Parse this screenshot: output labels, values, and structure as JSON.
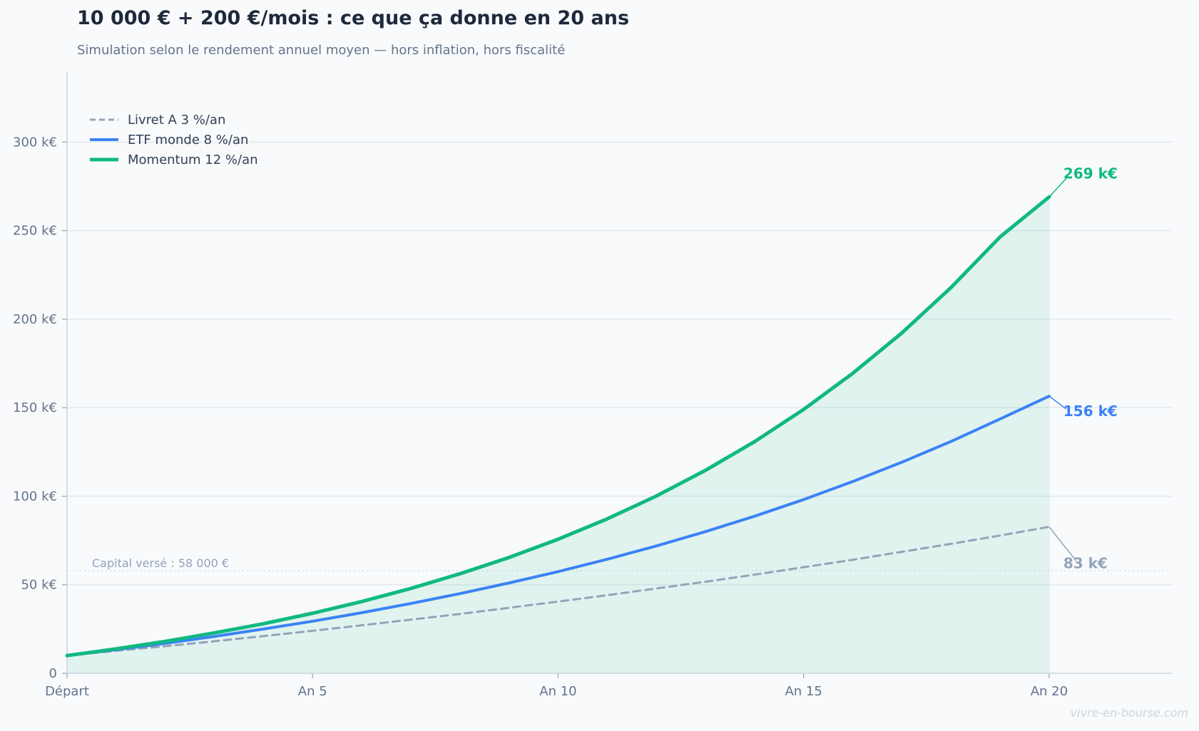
{
  "header": {
    "title": "10 000 € + 200 €/mois : ce que ça donne en 20 ans",
    "subtitle": "Simulation selon le rendement annuel moyen — hors inflation, hors fiscalité"
  },
  "footer": {
    "watermark": "vivre-en-bourse.com"
  },
  "chart_data": {
    "type": "line",
    "xlabel": "",
    "ylabel": "",
    "x": [
      0,
      1,
      2,
      3,
      4,
      5,
      6,
      7,
      8,
      9,
      10,
      11,
      12,
      13,
      14,
      15,
      16,
      17,
      18,
      19,
      20
    ],
    "xlim": [
      0,
      22.5
    ],
    "ylim": [
      0,
      340
    ],
    "x_ticks": [
      {
        "value": 0,
        "label": "Départ"
      },
      {
        "value": 5,
        "label": "An 5"
      },
      {
        "value": 10,
        "label": "An 10"
      },
      {
        "value": 15,
        "label": "An 15"
      },
      {
        "value": 20,
        "label": "An 20"
      }
    ],
    "y_ticks": [
      {
        "value": 0,
        "label": "0"
      },
      {
        "value": 50,
        "label": "50 k€"
      },
      {
        "value": 100,
        "label": "100 k€"
      },
      {
        "value": 150,
        "label": "150 k€"
      },
      {
        "value": 200,
        "label": "200 k€"
      },
      {
        "value": 250,
        "label": "250 k€"
      },
      {
        "value": 300,
        "label": "300 k€"
      }
    ],
    "grid": "horizontal",
    "legend_position": "top-left",
    "series": [
      {
        "name": "Livret A  3 %/an",
        "style": "dashed",
        "color": "#94a3b8",
        "values": [
          10.0,
          12.7,
          15.3,
          18.1,
          21.0,
          24.0,
          27.1,
          30.3,
          33.5,
          37.0,
          40.5,
          44.1,
          47.9,
          51.7,
          55.7,
          59.9,
          64.1,
          68.6,
          73.1,
          77.8,
          82.7
        ],
        "end_label": "83 k€"
      },
      {
        "name": "ETF monde  8 %/an",
        "style": "solid",
        "color": "#3b82f6",
        "values": [
          10.0,
          13.3,
          16.9,
          20.8,
          25.0,
          29.4,
          34.2,
          39.4,
          45.0,
          51.0,
          57.4,
          64.4,
          71.9,
          80.0,
          88.7,
          98.1,
          108.3,
          119.2,
          130.9,
          143.6,
          156.5
        ],
        "end_label": "156 k€"
      },
      {
        "name": "Momentum  12 %/an",
        "style": "solid",
        "color": "#10b981",
        "fill": true,
        "values": [
          10.0,
          13.8,
          18.0,
          22.8,
          28.0,
          33.9,
          40.5,
          47.9,
          56.2,
          65.4,
          75.7,
          87.2,
          100.1,
          114.6,
          130.8,
          149.0,
          169.4,
          192.2,
          217.8,
          246.4,
          269.0
        ],
        "end_label": "269 k€"
      }
    ],
    "reference_line": {
      "value": 58,
      "label": "Capital versé : 58 000 €"
    }
  }
}
